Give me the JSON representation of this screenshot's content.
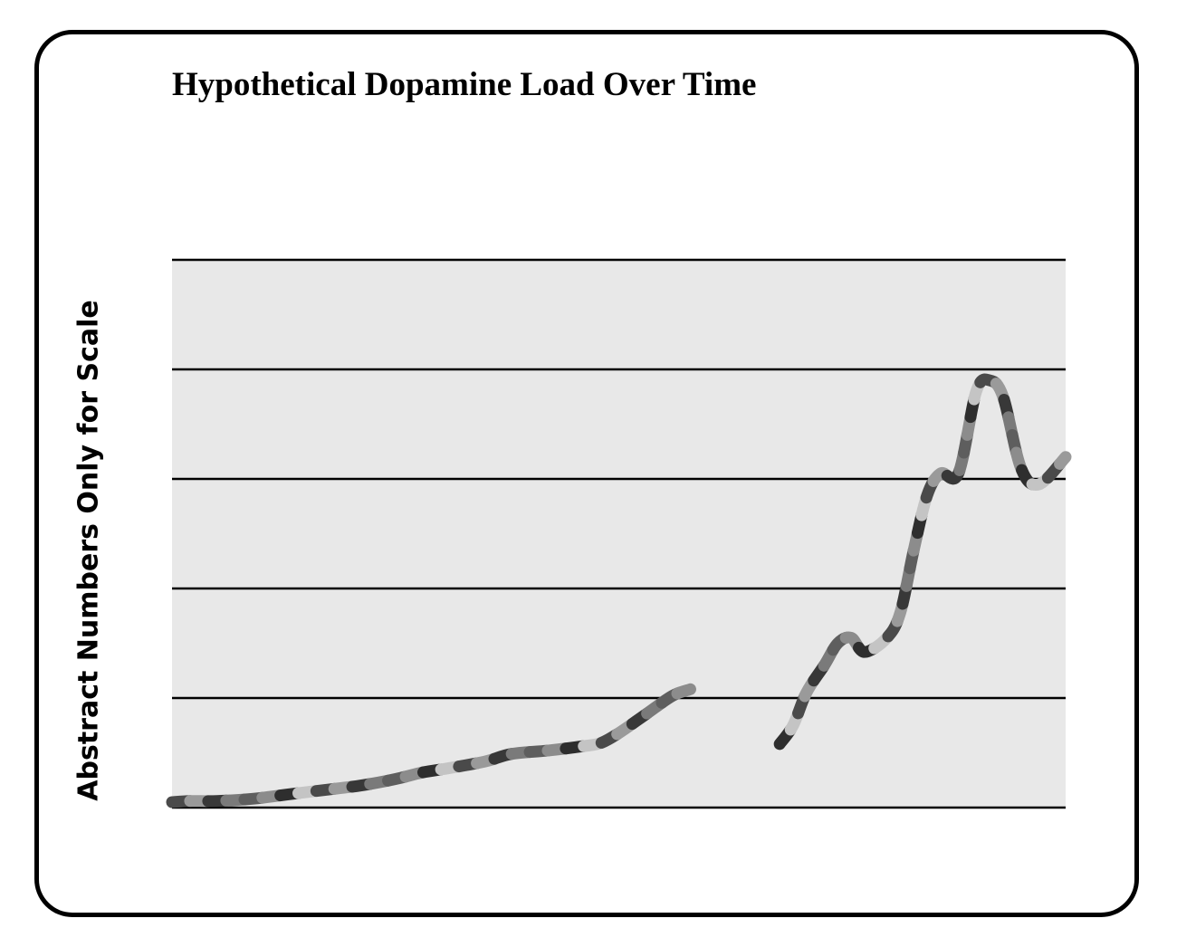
{
  "chart_data": {
    "type": "line",
    "title": "Hypothetical Dopamine Load Over Time",
    "xlabel": "",
    "ylabel": "Abstract Numbers Only for Scale",
    "ylim": [
      0,
      5
    ],
    "xlim": [
      0,
      100
    ],
    "grid": true,
    "gridlines": [
      0,
      1,
      2,
      3,
      4,
      5
    ],
    "colors": {
      "plot_background": "#e8e8e8",
      "gridline": "#000000",
      "segment_palette": [
        "#4a4a4a",
        "#7a7a7a",
        "#2e2e2e",
        "#9a9a9a",
        "#5e5e5e",
        "#c4c4c4",
        "#383838",
        "#8c8c8c"
      ]
    },
    "series": [
      {
        "segments": [
          {
            "x": [
              0,
              2,
              5,
              9,
              13,
              17,
              21,
              25,
              28,
              31,
              35,
              38,
              42,
              46,
              48,
              50,
              53,
              56,
              58
            ],
            "y": [
              0.05,
              0.06,
              0.06,
              0.08,
              0.12,
              0.16,
              0.2,
              0.26,
              0.32,
              0.36,
              0.42,
              0.49,
              0.52,
              0.56,
              0.59,
              0.68,
              0.85,
              1.02,
              1.08
            ]
          },
          {
            "x": [
              68,
              69.5,
              71,
              73,
              74.5,
              76,
              77.5,
              80,
              81.5,
              83,
              84.5,
              86,
              88,
              90,
              91.5,
              93,
              95,
              97,
              100
            ],
            "y": [
              0.58,
              0.75,
              1.05,
              1.3,
              1.5,
              1.55,
              1.42,
              1.55,
              1.78,
              2.35,
              2.85,
              3.05,
              3.05,
              3.8,
              3.9,
              3.75,
              3.1,
              2.95,
              3.2
            ]
          }
        ]
      }
    ]
  }
}
